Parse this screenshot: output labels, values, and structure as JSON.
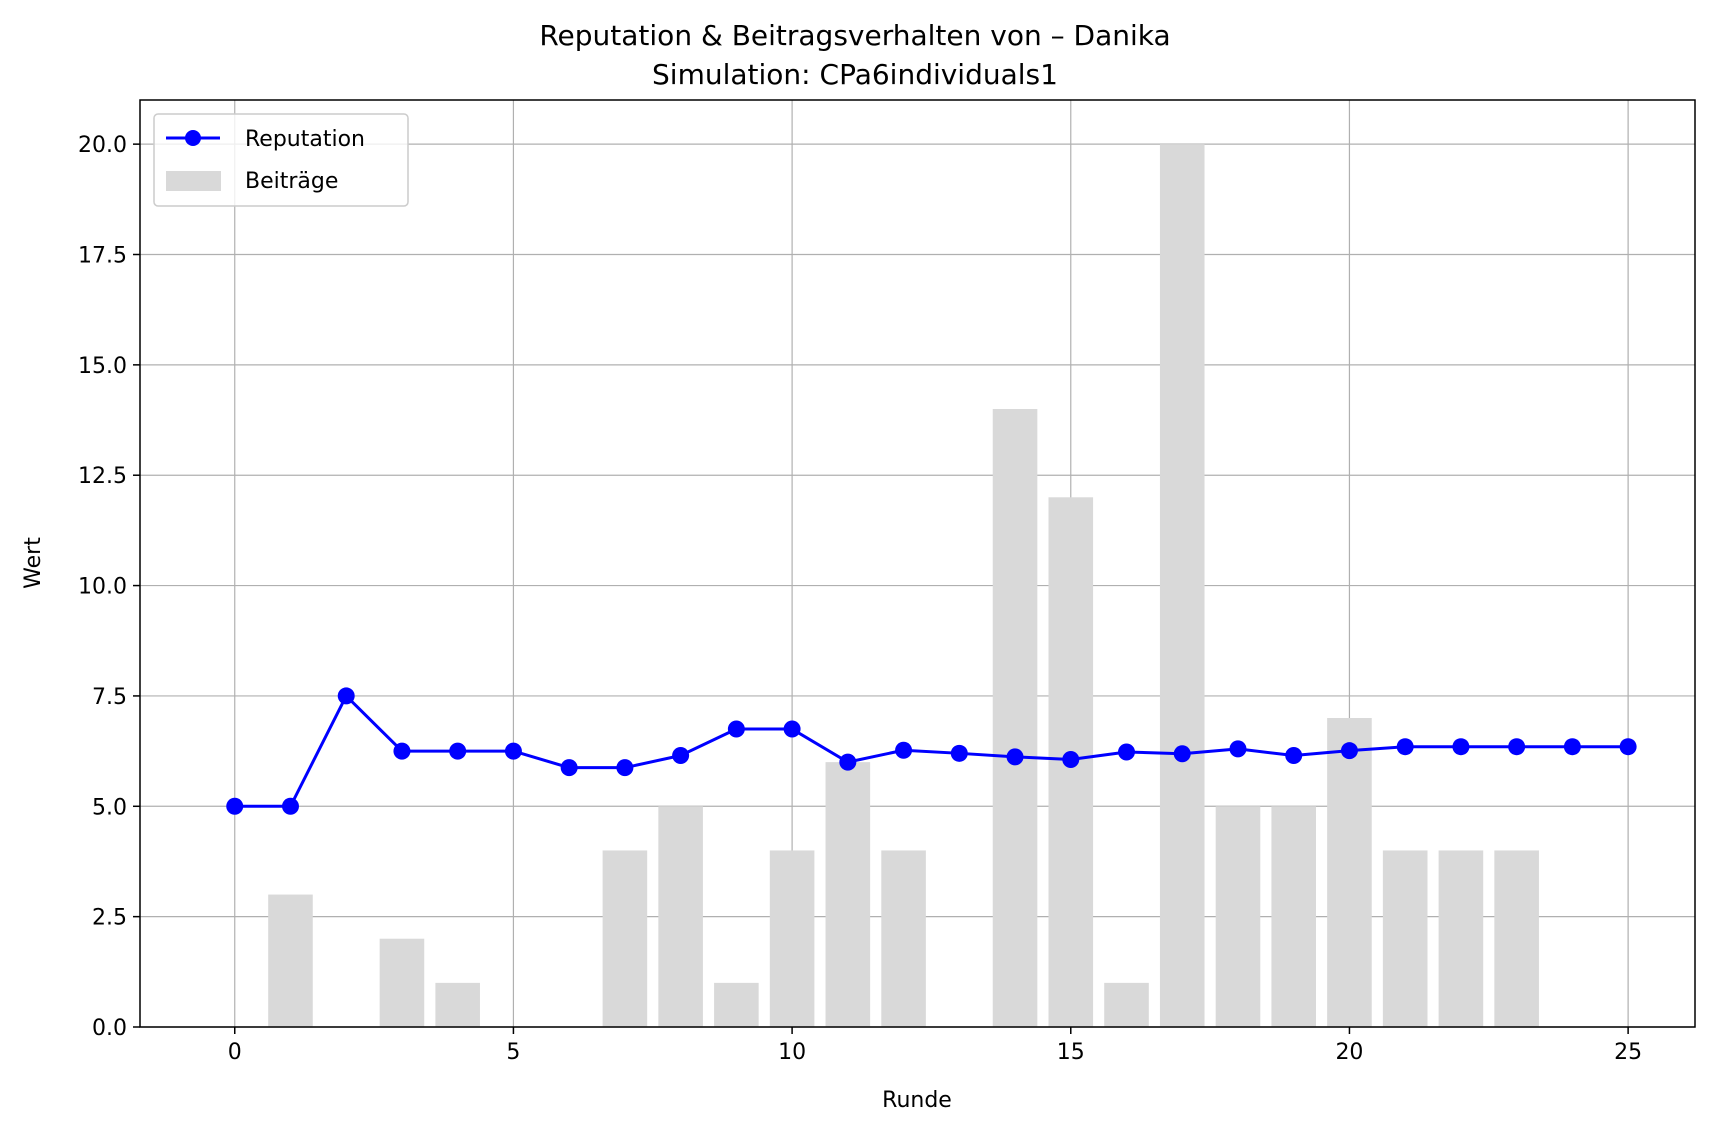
{
  "chart_data": {
    "type": "bar",
    "title": "Reputation & Beitragsverhalten von – Danika",
    "subtitle": "Simulation: CPa6individuals1",
    "xlabel": "Runde",
    "ylabel": "Wert",
    "xlim": [
      -1.7,
      26.2
    ],
    "ylim": [
      0,
      21
    ],
    "xticks": [
      0,
      5,
      10,
      15,
      20,
      25
    ],
    "yticks": [
      0,
      2.5,
      5,
      7.5,
      10,
      12.5,
      15,
      17.5,
      20
    ],
    "xtick_labels": [
      "0",
      "5",
      "10",
      "15",
      "20",
      "25"
    ],
    "ytick_labels": [
      "0.0",
      "2.5",
      "5.0",
      "7.5",
      "10.0",
      "12.5",
      "15.0",
      "17.5",
      "20.0"
    ],
    "grid": true,
    "legend_placement": "top-left",
    "series": [
      {
        "name": "Reputation",
        "kind": "line",
        "color": "#0000ff",
        "x": [
          0,
          1,
          2,
          3,
          4,
          5,
          6,
          7,
          8,
          9,
          10,
          11,
          12,
          13,
          14,
          15,
          16,
          17,
          18,
          19,
          20,
          21,
          22,
          23,
          24,
          25
        ],
        "values": [
          5.0,
          5.0,
          7.5,
          6.25,
          6.25,
          6.25,
          5.875,
          5.875,
          6.15,
          6.75,
          6.75,
          6.0,
          6.27,
          6.2,
          6.12,
          6.06,
          6.23,
          6.19,
          6.3,
          6.15,
          6.26,
          6.35,
          6.35,
          6.35,
          6.35,
          6.35
        ]
      },
      {
        "name": "Beiträge",
        "kind": "bar",
        "color": "#d9d9d9",
        "x": [
          0,
          1,
          2,
          3,
          4,
          5,
          6,
          7,
          8,
          9,
          10,
          11,
          12,
          13,
          14,
          15,
          16,
          17,
          18,
          19,
          20,
          21,
          22,
          23,
          24,
          25
        ],
        "values": [
          0,
          3,
          0,
          2,
          1,
          0,
          0,
          4,
          5,
          1,
          4,
          6,
          4,
          0,
          14,
          12,
          1,
          20,
          5,
          5,
          7,
          4,
          4,
          4,
          0,
          0
        ]
      }
    ]
  }
}
